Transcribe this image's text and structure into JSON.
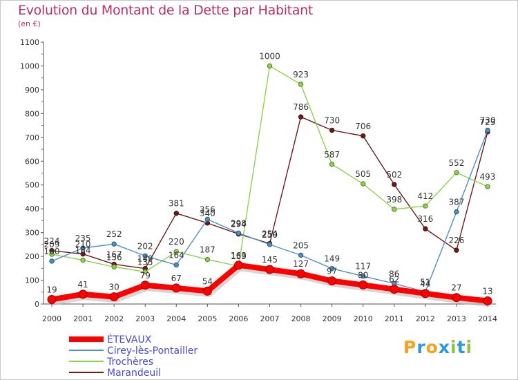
{
  "title": "Evolution du Montant de la Dette par Habitant",
  "unit": "(en €)",
  "logo": {
    "letters": [
      "P",
      "r",
      "o",
      "x",
      "i",
      "t",
      "i"
    ],
    "colors": [
      "#f7a21b",
      "#2a9bd8",
      "#f7a21b",
      "#2a9bd8",
      "#8bc53f",
      "#2a9bd8",
      "#8bc53f"
    ]
  },
  "chart_data": {
    "type": "line",
    "title": "Evolution du Montant de la Dette par Habitant",
    "ylabel": "(en €)",
    "xlabel": "",
    "ylim": [
      0,
      1100
    ],
    "yticks": [
      0,
      100,
      200,
      300,
      400,
      500,
      600,
      700,
      800,
      900,
      1000,
      1100
    ],
    "grid": false,
    "legend": "bottom-left",
    "x": [
      2000,
      2001,
      2002,
      2003,
      2004,
      2005,
      2006,
      2007,
      2008,
      2009,
      2010,
      2011,
      2012,
      2013,
      2014
    ],
    "series": [
      {
        "name": "ÉTEVAUX",
        "color": "#ff0000",
        "values": [
          19,
          41,
          30,
          79,
          67,
          54,
          163,
          145,
          127,
          97,
          80,
          62,
          44,
          27,
          13
        ]
      },
      {
        "name": "Cirey-lès-Pontailler",
        "color": "#4d8fc7",
        "values": [
          180,
          235,
          252,
          202,
          164,
          356,
          298,
          250,
          205,
          149,
          117,
          86,
          51,
          387,
          730
        ]
      },
      {
        "name": "Trochères",
        "color": "#8bd34a",
        "values": [
          209,
          184,
          156,
          135,
          220,
          187,
          159,
          1000,
          923,
          587,
          505,
          398,
          412,
          552,
          493
        ]
      },
      {
        "name": "Marandeuil",
        "color": "#6e1a1a",
        "values": [
          224,
          210,
          167,
          149,
          381,
          340,
          294,
          254,
          786,
          730,
          706,
          502,
          316,
          226,
          723
        ]
      }
    ]
  }
}
